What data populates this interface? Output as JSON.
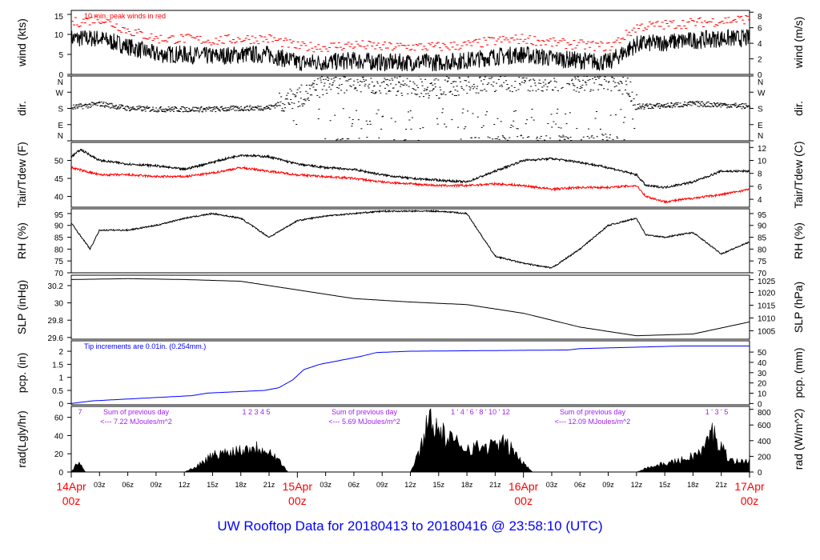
{
  "chart_data": {
    "type": "line",
    "title": "UW Rooftop Data for 20180413  to  20180416 @ 23:58:10  (UTC)",
    "x_hours_range": [
      0,
      72
    ],
    "x_major_ticks": [
      {
        "l1": "14Apr",
        "l2": "00z"
      },
      {
        "l1": "15Apr",
        "l2": "00z"
      },
      {
        "l1": "16Apr",
        "l2": "00z"
      },
      {
        "l1": "17Apr",
        "l2": "00z"
      }
    ],
    "x_minor_ticks": [
      "03z",
      "06z",
      "09z",
      "12z",
      "15z",
      "18z",
      "21z"
    ],
    "grid": false,
    "panels": [
      {
        "id": "wind",
        "ylabel": "wind (kts)",
        "ylabel_right": "wind (m/s)",
        "ylim": [
          0,
          16
        ],
        "yticks": [
          0,
          5,
          10,
          15
        ],
        "yticks_right": [
          0,
          2,
          4,
          6,
          8
        ],
        "right_scale": 0.5144,
        "note": "10 min. peak winds in red",
        "note_color": "#ff0000",
        "series": [
          {
            "name": "wind",
            "color": "#000000",
            "x": [
              0,
              3,
              6,
              9,
              12,
              15,
              18,
              21,
              24,
              27,
              30,
              33,
              36,
              39,
              42,
              45,
              48,
              51,
              54,
              57,
              60,
              63,
              66,
              69,
              72
            ],
            "y": [
              9,
              9,
              7,
              5,
              5,
              4.5,
              5,
              5,
              3,
              3,
              3.5,
              3,
              3,
              3,
              3.5,
              4.5,
              5,
              4,
              3.5,
              3,
              7.5,
              8,
              8.5,
              9,
              9
            ]
          },
          {
            "name": "peak",
            "color": "#ff0000",
            "x": [
              0,
              3,
              6,
              9,
              12,
              15,
              18,
              21,
              24,
              27,
              30,
              33,
              36,
              39,
              42,
              45,
              48,
              51,
              54,
              57,
              60,
              63,
              66,
              69,
              72
            ],
            "y": [
              13,
              14,
              11,
              9,
              9,
              8.5,
              9,
              9,
              7,
              7,
              7.5,
              7,
              7,
              7,
              7.5,
              8.5,
              9,
              8,
              7.5,
              7,
              12,
              12.5,
              13,
              13.5,
              14
            ]
          }
        ]
      },
      {
        "id": "dir",
        "ylabel": "dir.",
        "ylabel_right": "dir.",
        "ylim": [
          0,
          360
        ],
        "yticklabels": [
          "N",
          "E",
          "S",
          "W",
          "N"
        ],
        "series": [
          {
            "name": "dir",
            "color": "#000000",
            "x": [
              0,
              3,
              6,
              9,
              12,
              15,
              18,
              21,
              23,
              25,
              27,
              30,
              33,
              36,
              39,
              42,
              45,
              48,
              51,
              54,
              57,
              59,
              60,
              63,
              66,
              69,
              72
            ],
            "y": [
              185,
              205,
              180,
              175,
              175,
              175,
              180,
              185,
              230,
              260,
              320,
              325,
              315,
              310,
              290,
              320,
              330,
              335,
              335,
              330,
              340,
              300,
              190,
              195,
              205,
              200,
              190
            ]
          }
        ]
      },
      {
        "id": "tair",
        "ylabel": "Tair/Tdew (F)",
        "ylabel_right": "Tair/Tdew (C)",
        "ylim": [
          37,
          55
        ],
        "yticks": [
          40,
          45,
          50
        ],
        "yticks_right": [
          4,
          6,
          8,
          10,
          12
        ],
        "series": [
          {
            "name": "Tair",
            "color": "#000000",
            "x": [
              0,
              1,
              3,
              6,
              9,
              12,
              15,
              18,
              21,
              24,
              27,
              30,
              33,
              36,
              39,
              42,
              45,
              48,
              51,
              54,
              57,
              60,
              61,
              63,
              66,
              69,
              72
            ],
            "y": [
              51,
              53,
              50,
              49,
              48.5,
              47.5,
              49.5,
              51.5,
              51,
              49,
              48,
              47.5,
              46,
              45,
              44.5,
              44,
              47,
              50,
              50.5,
              49.5,
              48,
              46,
              43,
              42.5,
              44,
              47,
              47
            ]
          },
          {
            "name": "Tdew",
            "color": "#ff0000",
            "x": [
              0,
              3,
              6,
              9,
              12,
              15,
              18,
              21,
              24,
              27,
              30,
              33,
              36,
              39,
              42,
              45,
              48,
              51,
              54,
              57,
              60,
              61,
              63,
              66,
              69,
              72
            ],
            "y": [
              48,
              46,
              46,
              45.5,
              45.5,
              46.5,
              48,
              47,
              46,
              45.5,
              45,
              44,
              43.5,
              43,
              43,
              43.5,
              43,
              42,
              42.5,
              42.5,
              43,
              40,
              38.5,
              39.5,
              40.5,
              42
            ]
          }
        ]
      },
      {
        "id": "rh",
        "ylabel": "RH (%)",
        "ylabel_right": "RH (%)",
        "ylim": [
          70,
          97
        ],
        "yticks": [
          70,
          75,
          80,
          85,
          90,
          95
        ],
        "yticks_right": [
          70,
          75,
          80,
          85,
          90,
          95
        ],
        "series": [
          {
            "name": "RH",
            "color": "#000000",
            "x": [
              0,
              2,
              3,
              6,
              9,
              12,
              15,
              18,
              21,
              24,
              27,
              30,
              33,
              36,
              39,
              42,
              45,
              48,
              51,
              54,
              57,
              60,
              61,
              63,
              66,
              69,
              72
            ],
            "y": [
              91,
              80,
              88,
              88,
              90,
              93,
              95,
              93,
              85,
              92,
              94,
              95,
              96,
              96,
              96,
              95,
              77,
              74,
              72,
              80,
              90,
              93,
              86,
              85,
              87,
              78,
              83
            ]
          }
        ]
      },
      {
        "id": "slp",
        "ylabel": "SLP (inHg)",
        "ylabel_right": "SLP (hPa)",
        "ylim": [
          29.58,
          30.32
        ],
        "yticks": [
          29.6,
          29.8,
          30.0,
          30.2
        ],
        "yticks_right": [
          1005,
          1010,
          1015,
          1020,
          1025
        ],
        "series": [
          {
            "name": "SLP",
            "color": "#000000",
            "x": [
              0,
              6,
              12,
              18,
              24,
              30,
              36,
              42,
              48,
              54,
              60,
              66,
              72
            ],
            "y": [
              30.27,
              30.28,
              30.27,
              30.25,
              30.15,
              30.05,
              30.01,
              29.98,
              29.88,
              29.72,
              29.62,
              29.64,
              29.78
            ]
          }
        ]
      },
      {
        "id": "pcp",
        "ylabel": "pcp. (in)",
        "ylabel_right": "pcp. (mm)",
        "ylim": [
          -0.05,
          2.4
        ],
        "yticks": [
          0,
          0.5,
          1.0,
          1.5,
          2.0
        ],
        "yticks_right": [
          0,
          10,
          20,
          30,
          40,
          50
        ],
        "note": "Tip increments are 0.01in. (0.254mm.)",
        "note_color": "#0000ff",
        "series": [
          {
            "name": "pcp",
            "color": "#0000ff",
            "x": [
              0,
              2.2,
              12.8,
              14.5,
              20.5,
              22,
              23.5,
              24.7,
              26.4,
              30.7,
              32.4,
              35.8,
              52.8,
              54,
              64.7,
              72
            ],
            "y": [
              0,
              0.1,
              0.3,
              0.4,
              0.5,
              0.6,
              0.9,
              1.3,
              1.5,
              1.8,
              1.95,
              2.0,
              2.05,
              2.1,
              2.2,
              2.2
            ]
          }
        ]
      },
      {
        "id": "rad",
        "ylabel": "rad(Lgly/hr)",
        "ylabel_right": "rad (W/m^2)",
        "ylim": [
          0,
          72
        ],
        "yticks": [
          0,
          20,
          40,
          60
        ],
        "yticks_right": [
          0,
          200,
          400,
          600,
          800
        ],
        "series": [
          {
            "name": "rad",
            "color": "#000000",
            "x": [
              0,
              0.5,
              1,
              1.5,
              12,
              13,
              15,
              17,
              19,
              21,
              22,
              23,
              36,
              37,
              38,
              39,
              40,
              42,
              44,
              46,
              47,
              48,
              49,
              60,
              61,
              63,
              65,
              67,
              68,
              69,
              70,
              71,
              72
            ],
            "y": [
              0,
              8,
              12,
              0,
              0,
              5,
              20,
              25,
              30,
              28,
              15,
              0,
              0,
              25,
              70,
              50,
              40,
              30,
              30,
              35,
              25,
              10,
              0,
              0,
              5,
              10,
              15,
              25,
              50,
              30,
              15,
              12,
              15
            ]
          }
        ],
        "annotations": [
          {
            "hour_labels": "7",
            "sum_label": "Sum of previous day",
            "sum_value": "<--- 7.22 MJoules/m^2"
          },
          {
            "hour_labels": "1   2   3   4   5",
            "sum_label": "Sum of previous day",
            "sum_value": "<--- 5.69 MJoules/m^2"
          },
          {
            "hour_labels": "1  '  4  '  6  '  8  '  10  '     12",
            "sum_label": "Sum of previous day",
            "sum_value": "<--- 12.09 MJoules/m^2"
          },
          {
            "hour_labels": "1  '  3  '  5"
          }
        ],
        "annotation_color": "#a020f0"
      }
    ]
  }
}
